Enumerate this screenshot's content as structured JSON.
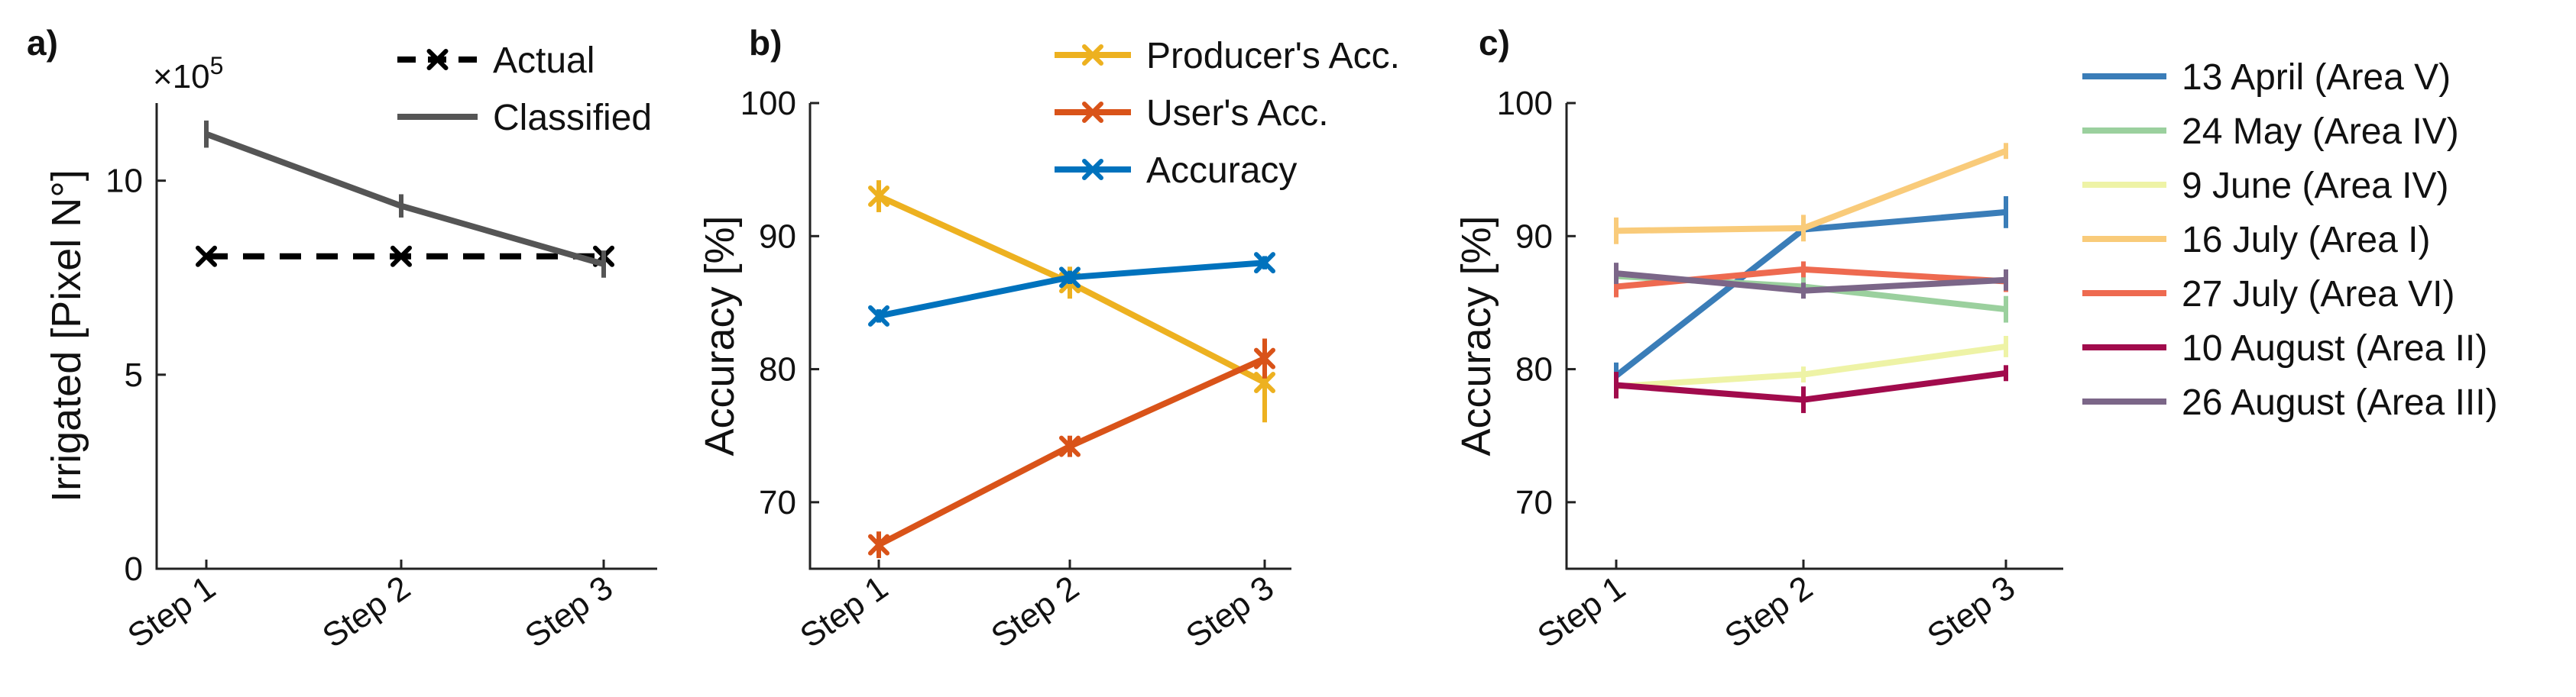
{
  "chart_data": [
    {
      "panel_label": "a)",
      "type": "line",
      "categories": [
        "Step 1",
        "Step 2",
        "Step 3"
      ],
      "ylabel": "Irrigated [Pixel N°]",
      "multiplier_base": "×10",
      "multiplier_exp": "5",
      "ylim": [
        0,
        12
      ],
      "yticks": [
        0,
        5,
        10
      ],
      "legend_position": "top-right",
      "series": [
        {
          "name": "Actual",
          "color": "#000000",
          "style": "dashed",
          "marker": "x",
          "values": [
            8.05,
            8.05,
            8.05
          ],
          "err": [
            0,
            0,
            0
          ]
        },
        {
          "name": "Classified",
          "color": "#555555",
          "style": "solid",
          "marker": "none",
          "values": [
            11.2,
            9.35,
            7.85
          ],
          "err": [
            0.35,
            0.3,
            0.35
          ]
        }
      ]
    },
    {
      "panel_label": "b)",
      "type": "line",
      "categories": [
        "Step 1",
        "Step 2",
        "Step 3"
      ],
      "ylabel": "Accuracy [%]",
      "ylim": [
        65,
        100
      ],
      "yticks": [
        70,
        80,
        90,
        100
      ],
      "legend_position": "top-right",
      "series": [
        {
          "name": "Producer's Acc.",
          "color": "#EDB120",
          "style": "solid",
          "marker": "x",
          "values": [
            93,
            86.5,
            79
          ],
          "err": [
            1.2,
            1.2,
            3
          ]
        },
        {
          "name": "User's Acc.",
          "color": "#D95319",
          "style": "solid",
          "marker": "x",
          "values": [
            66.8,
            74.2,
            80.8
          ],
          "err": [
            1,
            0.8,
            1.5
          ]
        },
        {
          "name": "Accuracy",
          "color": "#0072BD",
          "style": "solid",
          "marker": "x",
          "values": [
            84,
            86.9,
            88
          ],
          "err": [
            0.5,
            0.5,
            0.5
          ]
        }
      ]
    },
    {
      "panel_label": "c)",
      "type": "line",
      "categories": [
        "Step 1",
        "Step 2",
        "Step 3"
      ],
      "ylabel": "Accuracy [%]",
      "ylim": [
        65,
        100
      ],
      "yticks": [
        70,
        80,
        90,
        100
      ],
      "legend_position": "outside-right",
      "series": [
        {
          "name": "13 April (Area V)",
          "color": "#3A7DB8",
          "values": [
            79.5,
            90.5,
            91.8
          ],
          "err": [
            1,
            0.8,
            1.2
          ]
        },
        {
          "name": "24 May (Area IV)",
          "color": "#9BD09E",
          "values": [
            87,
            86.2,
            84.5
          ],
          "err": [
            0.8,
            0.8,
            1
          ]
        },
        {
          "name": "9 June (Area IV)",
          "color": "#EEF3A6",
          "values": [
            78.7,
            79.6,
            81.7
          ],
          "err": [
            0.6,
            0.6,
            0.8
          ]
        },
        {
          "name": "16 July (Area I)",
          "color": "#F9CB7A",
          "values": [
            90.4,
            90.6,
            96.4
          ],
          "err": [
            1,
            1,
            0.6
          ]
        },
        {
          "name": "27 July (Area VI)",
          "color": "#EE6A50",
          "values": [
            86.2,
            87.5,
            86.6
          ],
          "err": [
            0.8,
            0.6,
            0.8
          ]
        },
        {
          "name": "10 August (Area II)",
          "color": "#A10B4C",
          "values": [
            78.8,
            77.7,
            79.7
          ],
          "err": [
            1,
            1,
            0.6
          ]
        },
        {
          "name": "26 August  (Area III)",
          "color": "#7B6688",
          "values": [
            87.2,
            85.9,
            86.7
          ],
          "err": [
            0.8,
            0.6,
            0.8
          ]
        }
      ]
    }
  ]
}
